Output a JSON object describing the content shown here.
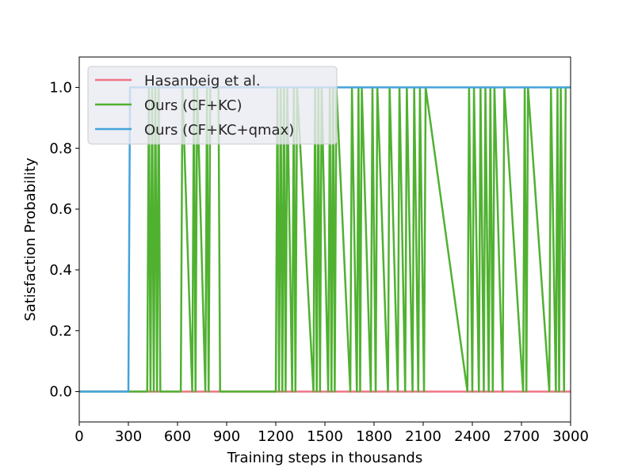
{
  "chart_data": {
    "type": "line",
    "title": "",
    "xlabel": "Training steps in thousands",
    "ylabel": "Satisfaction Probability",
    "xlim": [
      0,
      3000
    ],
    "ylim": [
      -0.1,
      1.1
    ],
    "xticks": [
      0,
      300,
      600,
      900,
      1200,
      1500,
      1800,
      2100,
      2400,
      2700,
      3000
    ],
    "yticks": [
      0.0,
      0.2,
      0.4,
      0.6,
      0.8,
      1.0
    ],
    "xtick_labels": [
      "0",
      "300",
      "600",
      "900",
      "1200",
      "1500",
      "1800",
      "2100",
      "2400",
      "2700",
      "3000"
    ],
    "ytick_labels": [
      "0.0",
      "0.2",
      "0.4",
      "0.6",
      "0.8",
      "1.0"
    ],
    "grid": false,
    "legend_position": "upper-left",
    "series": [
      {
        "name": "Hasanbeig et al.",
        "color": "#f07586",
        "x": [
          0,
          3000
        ],
        "y": [
          0,
          0
        ]
      },
      {
        "name": "Ours (CF+KC)",
        "color": "#50b131",
        "x": [
          0,
          415,
          425,
          435,
          445,
          455,
          465,
          475,
          485,
          495,
          620,
          630,
          690,
          700,
          710,
          720,
          770,
          780,
          790,
          800,
          850,
          860,
          1200,
          1210,
          1220,
          1230,
          1240,
          1250,
          1260,
          1270,
          1300,
          1310,
          1320,
          1330,
          1430,
          1440,
          1450,
          1460,
          1470,
          1480,
          1520,
          1530,
          1540,
          1550,
          1560,
          1570,
          1655,
          1665,
          1695,
          1705,
          1715,
          1725,
          1780,
          1790,
          1810,
          1820,
          1885,
          1895,
          1945,
          1955,
          1990,
          2000,
          2035,
          2045,
          2070,
          2080,
          2105,
          2115,
          2370,
          2380,
          2400,
          2410,
          2440,
          2450,
          2470,
          2480,
          2500,
          2510,
          2525,
          2535,
          2585,
          2595,
          2710,
          2720,
          2730,
          2740,
          2870,
          2880,
          2910,
          2920,
          2930,
          2940,
          2960,
          2970,
          3000
        ],
        "y": [
          0,
          0,
          1,
          0,
          1,
          0,
          1,
          0,
          1,
          0,
          0,
          1,
          0,
          1,
          0,
          1,
          0,
          1,
          0,
          1,
          1,
          0,
          0,
          1,
          0,
          1,
          0,
          1,
          0,
          1,
          0,
          1,
          0,
          1,
          0,
          1,
          0,
          1,
          0,
          1,
          0,
          1,
          0,
          1,
          0,
          1,
          0,
          1,
          0,
          1,
          0,
          1,
          0,
          1,
          0,
          1,
          0,
          1,
          0,
          1,
          0,
          1,
          0,
          1,
          0,
          1,
          0,
          1,
          0,
          1,
          0,
          1,
          0,
          1,
          0,
          1,
          0,
          1,
          0,
          1,
          0,
          1,
          0,
          1,
          0,
          1,
          0,
          1,
          0,
          1,
          0,
          1,
          0,
          1,
          1
        ]
      },
      {
        "name": "Ours (CF+KC+qmax)",
        "color": "#44a3db",
        "x": [
          0,
          300,
          310,
          3000
        ],
        "y": [
          0,
          0,
          1,
          1
        ]
      }
    ]
  }
}
